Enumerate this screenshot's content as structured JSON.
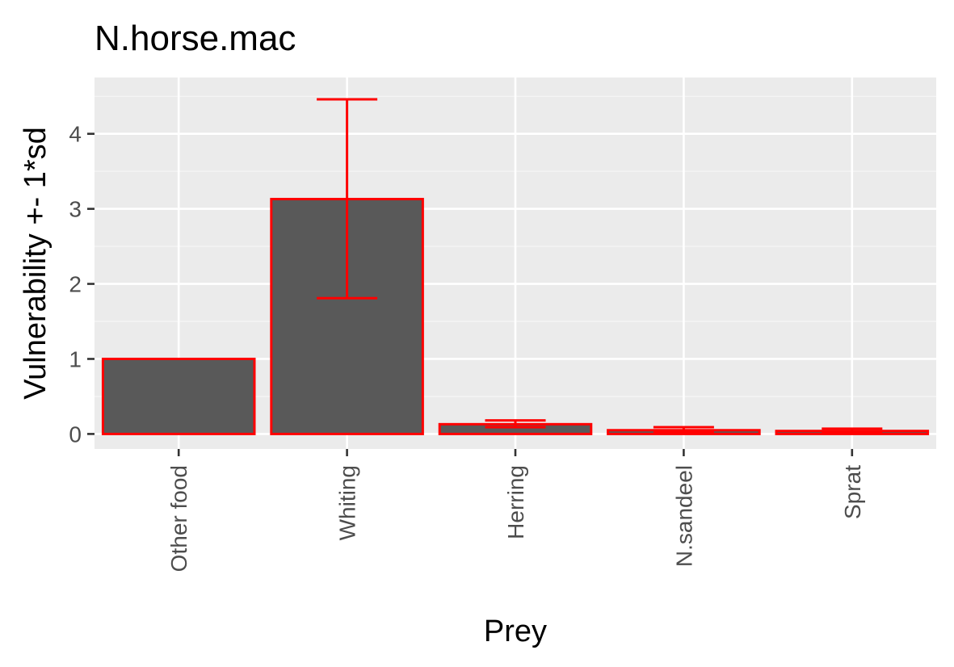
{
  "chart_data": {
    "type": "bar",
    "title": "N.horse.mac",
    "xlabel": "Prey",
    "ylabel": "Vulnerability +- 1*sd",
    "categories": [
      "Other food",
      "Whiting",
      "Herring",
      "N.sandeel",
      "Sprat"
    ],
    "values": [
      1.0,
      3.13,
      0.13,
      0.05,
      0.04
    ],
    "error_low": [
      1.0,
      1.81,
      0.09,
      0.02,
      0.02
    ],
    "error_high": [
      1.0,
      4.46,
      0.18,
      0.09,
      0.07
    ],
    "ylim": [
      -0.2,
      4.75
    ],
    "yticks": [
      0,
      1,
      2,
      3,
      4
    ],
    "grid": true,
    "legend": "none",
    "colors": {
      "bar_fill": "#595959",
      "bar_outline": "#ff0000",
      "error_bar": "#ff0000",
      "panel_background": "#ebebeb",
      "grid_major": "#ffffff",
      "grid_minor": "#f5f5f5"
    }
  }
}
